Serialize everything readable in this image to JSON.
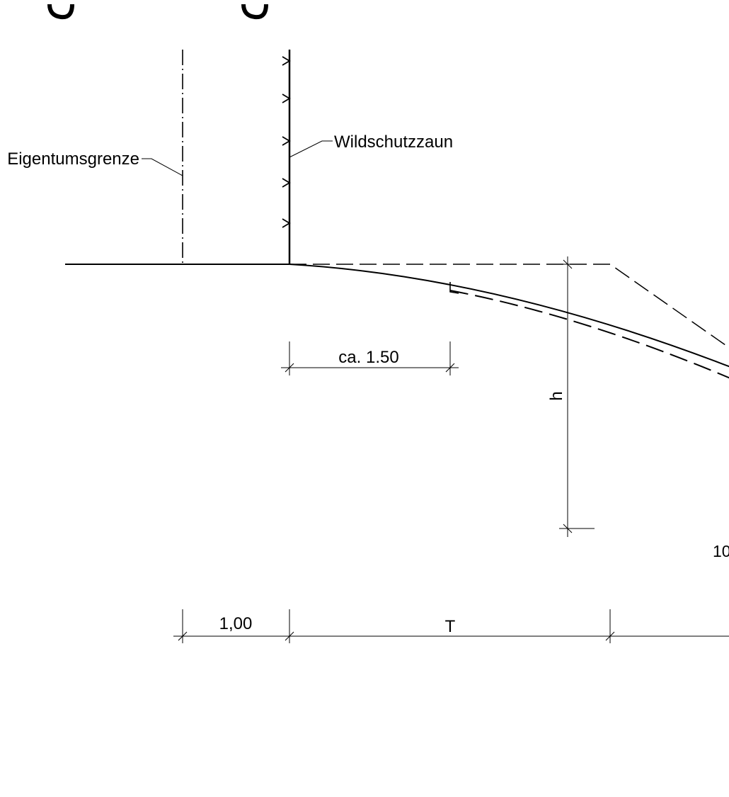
{
  "labels": {
    "property_boundary": "Eigentumsgrenze",
    "fence": "Wildschutzzaun",
    "dim_ca": "ca. 1.50",
    "dim_h": "h",
    "dim_spacing": "1,00",
    "dim_T": "T",
    "cut_off_number": "10"
  },
  "colors": {
    "ink": "#000000",
    "background": "#ffffff"
  }
}
